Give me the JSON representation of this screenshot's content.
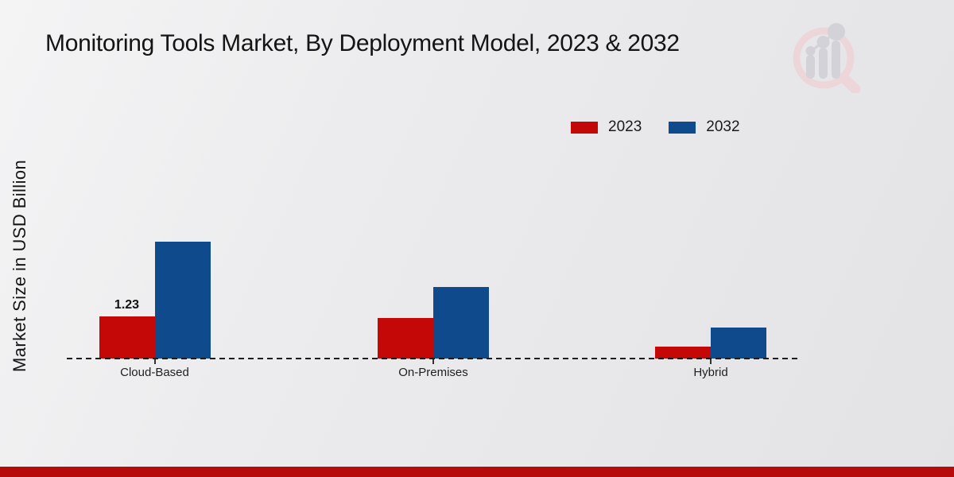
{
  "title": "Monitoring Tools Market, By Deployment Model, 2023 & 2032",
  "y_axis_label": "Market Size in USD Billion",
  "legend": [
    {
      "label": "2023",
      "color": "#c40808"
    },
    {
      "label": "2032",
      "color": "#0e4a8c"
    }
  ],
  "watermark_icon": "magnifier-growth-chart-logo",
  "chart_data": {
    "type": "bar",
    "title": "Monitoring Tools Market, By Deployment Model, 2023 & 2032",
    "categories": [
      "Cloud-Based",
      "On-Premises",
      "Hybrid"
    ],
    "series": [
      {
        "name": "2023",
        "color": "#c40808",
        "values": [
          1.23,
          1.18,
          0.35
        ]
      },
      {
        "name": "2032",
        "color": "#0e4a8c",
        "values": [
          3.44,
          2.11,
          0.91
        ]
      }
    ],
    "annotations": [
      {
        "category_index": 0,
        "series_index": 0,
        "text": "1.23"
      }
    ],
    "xlabel": "",
    "ylabel": "Market Size in USD Billion",
    "ylim": [
      0,
      3.9
    ],
    "grid": false,
    "legend_position": "top-right",
    "baseline_style": "dashed",
    "y_ticks_visible": false
  },
  "footer": {
    "bar_color": "#b70b0b"
  }
}
